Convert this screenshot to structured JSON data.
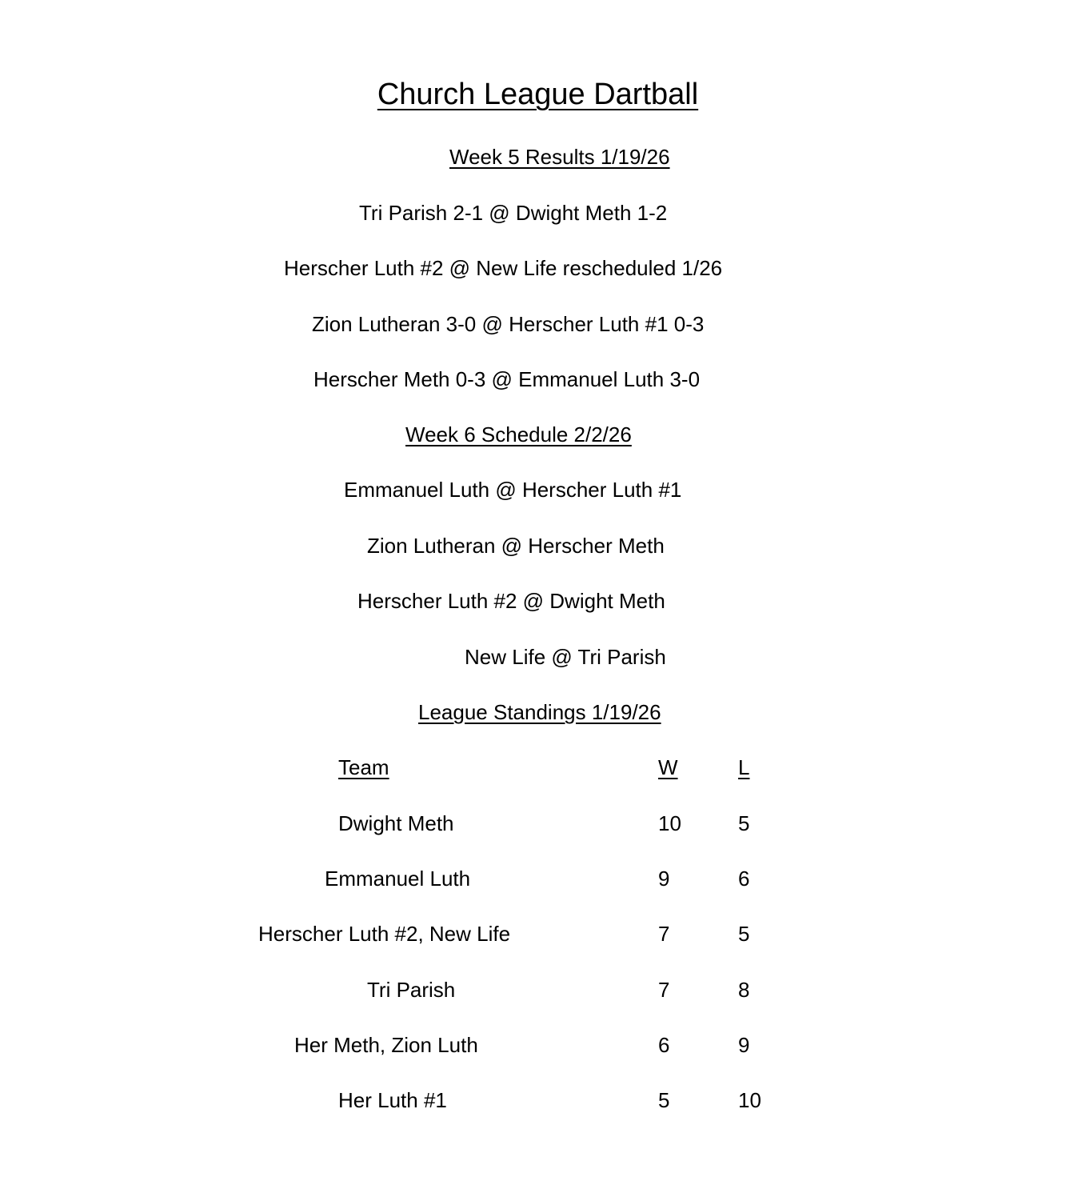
{
  "title": "Church League Dartball",
  "week5": {
    "heading": "Week 5 Results 1/19/26",
    "results": [
      "Tri Parish 2-1 @ Dwight Meth 1-2",
      "Herscher Luth #2 @ New Life rescheduled 1/26",
      "Zion Lutheran 3-0 @ Herscher Luth #1 0-3",
      "Herscher Meth 0-3 @ Emmanuel Luth 3-0"
    ]
  },
  "week6": {
    "heading": "Week 6 Schedule 2/2/26",
    "games": [
      "Emmanuel Luth @ Herscher Luth #1",
      "Zion Lutheran @ Herscher Meth",
      "Herscher Luth #2 @ Dwight Meth",
      "New Life @ Tri Parish"
    ]
  },
  "standings": {
    "heading": "League Standings 1/19/26",
    "columns": {
      "team": "Team",
      "w": "W",
      "l": "L"
    },
    "rows": [
      {
        "team": "Dwight Meth",
        "w": "10",
        "l": "5"
      },
      {
        "team": "Emmanuel Luth",
        "w": "9",
        "l": "6"
      },
      {
        "team": "Herscher Luth #2, New Life",
        "w": "7",
        "l": "5"
      },
      {
        "team": "Tri Parish",
        "w": "7",
        "l": "8"
      },
      {
        "team": "Her Meth, Zion Luth",
        "w": "6",
        "l": "9"
      },
      {
        "team": "Her Luth #1",
        "w": "5",
        "l": "10"
      }
    ]
  }
}
